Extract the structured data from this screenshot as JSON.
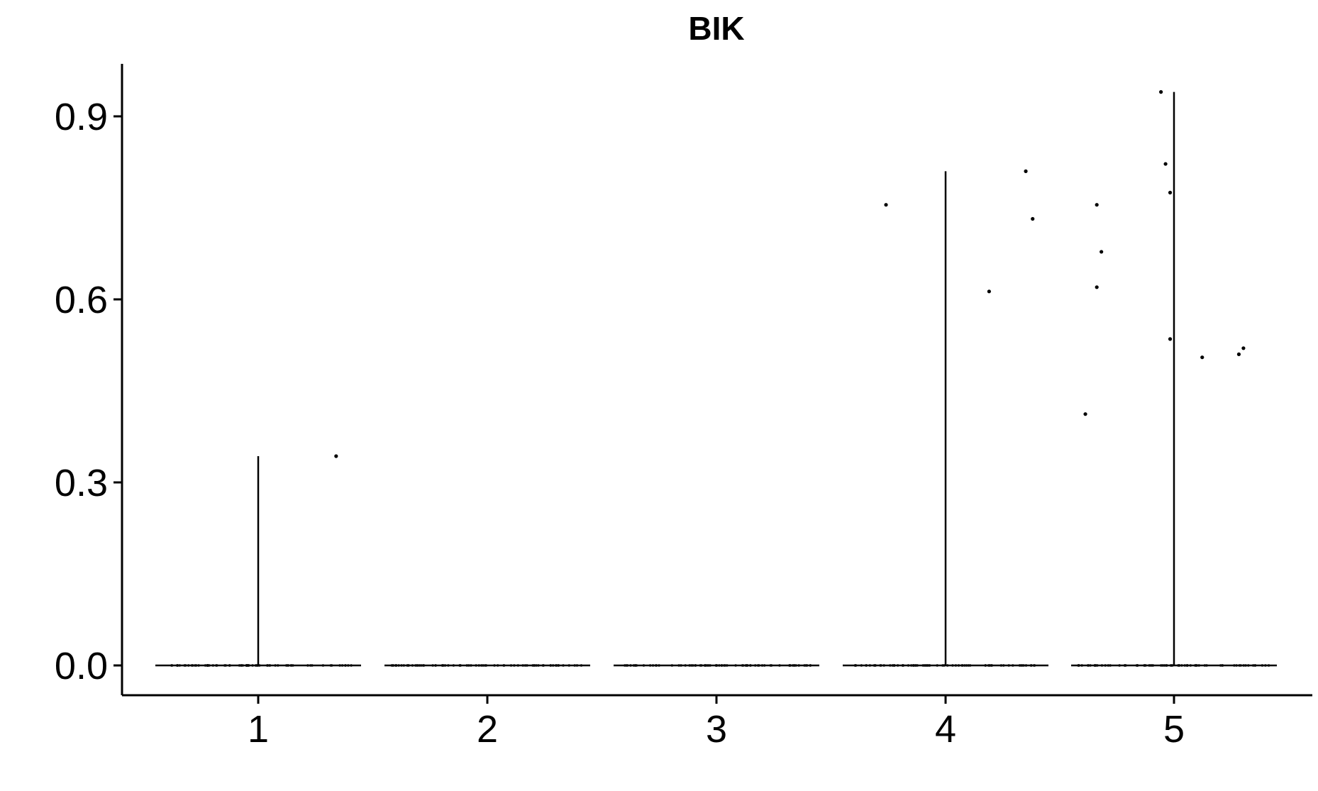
{
  "chart_data": {
    "type": "violin",
    "title": "BIK",
    "xlabel": "",
    "ylabel": "",
    "categories": [
      "1",
      "2",
      "3",
      "4",
      "5"
    ],
    "ylim": [
      -0.045,
      0.99
    ],
    "yticks": [
      0.0,
      0.3,
      0.6,
      0.9
    ],
    "ytick_labels": [
      "0.0",
      "0.3",
      "0.6",
      "0.9"
    ],
    "grid": false,
    "legend": "none",
    "series": [
      {
        "category": "1",
        "max": 0.343,
        "nonzero_points": [
          [
            1.34,
            0.343
          ]
        ]
      },
      {
        "category": "2",
        "max": 0.0,
        "nonzero_points": []
      },
      {
        "category": "3",
        "max": 0.0,
        "nonzero_points": []
      },
      {
        "category": "4",
        "max": 0.81,
        "nonzero_points": [
          [
            3.74,
            0.755
          ],
          [
            4.19,
            0.613
          ],
          [
            4.35,
            0.81
          ],
          [
            4.38,
            0.732
          ]
        ]
      },
      {
        "category": "5",
        "max": 0.94,
        "nonzero_points": [
          [
            4.61,
            0.412
          ],
          [
            4.66,
            0.62
          ],
          [
            4.66,
            0.755
          ],
          [
            4.68,
            0.678
          ],
          [
            4.94,
            0.94
          ],
          [
            4.96,
            0.822
          ],
          [
            4.98,
            0.775
          ],
          [
            4.98,
            0.535
          ],
          [
            5.12,
            0.505
          ],
          [
            5.28,
            0.51
          ],
          [
            5.3,
            0.52
          ]
        ]
      }
    ],
    "colors": {
      "ink": "#000000",
      "background": "#ffffff"
    }
  }
}
